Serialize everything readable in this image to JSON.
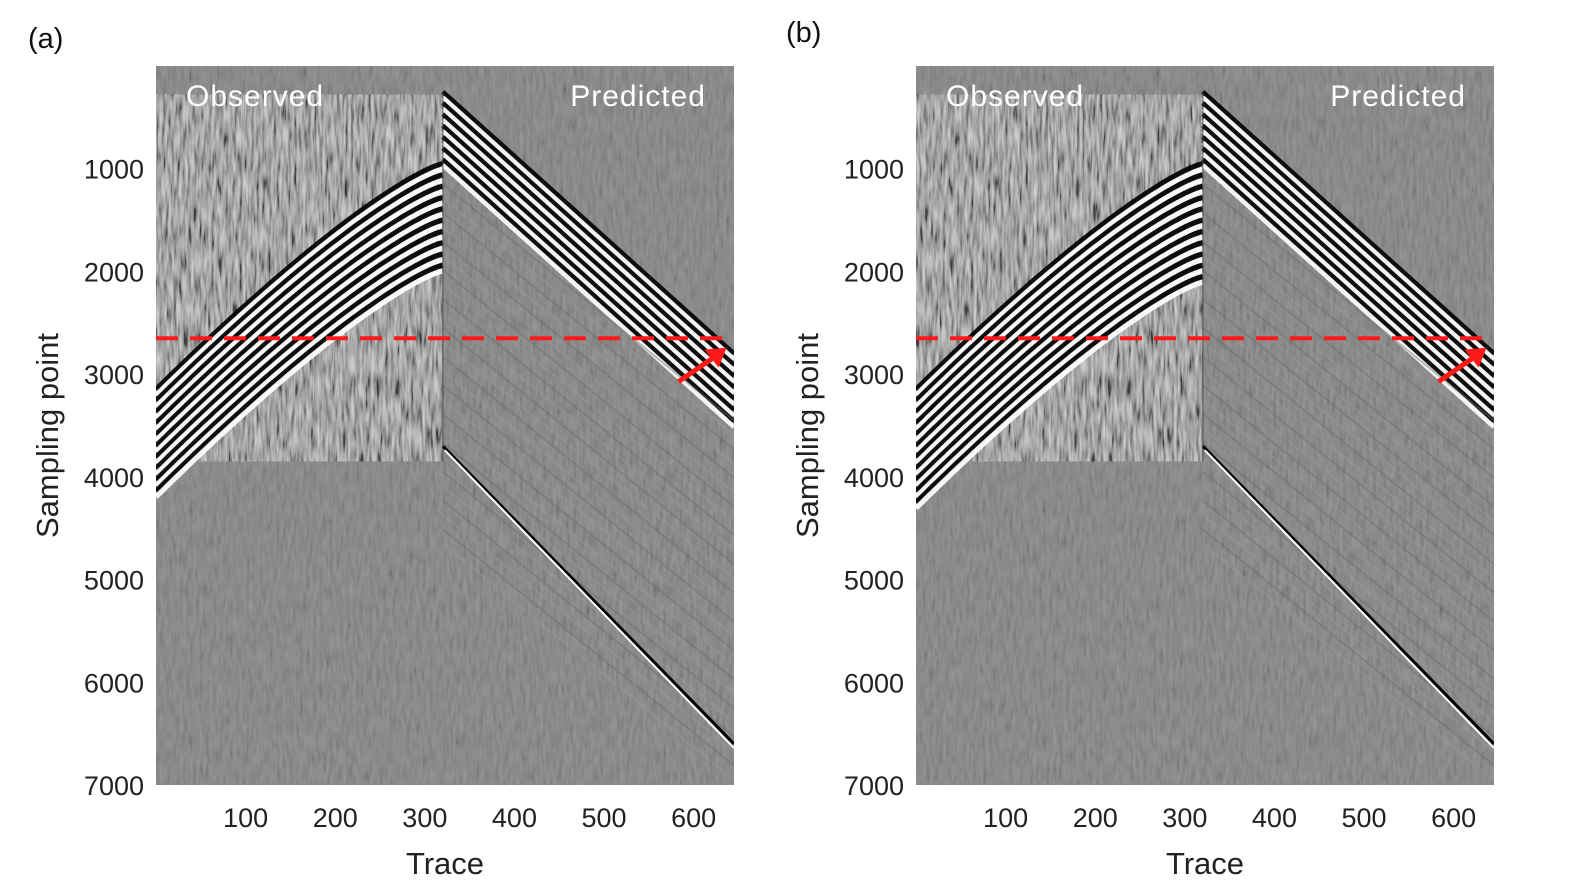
{
  "figure": {
    "panels": [
      {
        "id": "a",
        "label": "(a)",
        "left_text": "Observed",
        "right_text": "Predicted",
        "mode": "a"
      },
      {
        "id": "b",
        "label": "(b)",
        "left_text": "Observed",
        "right_text": "Predicted",
        "mode": "b"
      }
    ]
  },
  "colors": {
    "background": "#808080",
    "dashed_line": "#ff1a1a",
    "arrow": "#ff1a1a",
    "overlay_text": "#ffffff"
  },
  "chart_data": [
    {
      "type": "heatmap",
      "panel": "(a)",
      "xlabel": "Trace",
      "ylabel": "Sampling point",
      "xlim": [
        0,
        645
      ],
      "ylim": [
        7000,
        0
      ],
      "xticks": [
        100,
        200,
        300,
        400,
        500,
        600
      ],
      "yticks": [
        1000,
        2000,
        3000,
        4000,
        5000,
        6000,
        7000
      ],
      "annotations": {
        "left": "Observed",
        "right": "Predicted",
        "dashed_line_sample": 2650,
        "arrow_trace": 630,
        "arrow_sample": 2800
      },
      "features": {
        "apex_trace": 320,
        "apex_sample": 250,
        "observed_end_sample": 3850
      }
    },
    {
      "type": "heatmap",
      "panel": "(b)",
      "xlabel": "Trace",
      "ylabel": "Sampling point",
      "xlim": [
        0,
        645
      ],
      "ylim": [
        7000,
        0
      ],
      "xticks": [
        100,
        200,
        300,
        400,
        500,
        600
      ],
      "yticks": [
        1000,
        2000,
        3000,
        4000,
        5000,
        6000,
        7000
      ],
      "annotations": {
        "left": "Observed",
        "right": "Predicted",
        "dashed_line_sample": 2650,
        "arrow_trace": 630,
        "arrow_sample": 2800
      },
      "features": {
        "apex_trace": 320,
        "apex_sample": 250,
        "observed_end_sample": 3850
      }
    }
  ]
}
